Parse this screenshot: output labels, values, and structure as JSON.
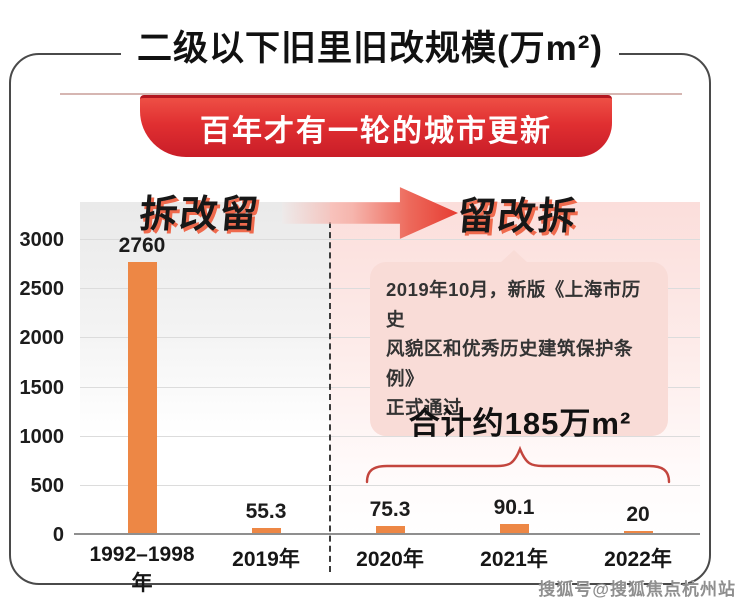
{
  "page": {
    "title": "二级以下旧里旧改规模(万m²)",
    "banner": "百年才有一轮的城市更新",
    "phase_left": "拆改留",
    "phase_right": "留改拆",
    "callout_text": "2019年10月，新版《上海市历史\n风貌区和优秀历史建筑保护条例》\n正式通过",
    "total_label": "合计约185万m²",
    "watermark": "搜狐号@搜狐焦点杭州站"
  },
  "colors": {
    "bar": "#ED8745",
    "banner_red": "#D6242B",
    "accent_red": "#E8453C",
    "callout_bg": "#F9DCD7",
    "brace": "#C3453E",
    "band_left_gray": "#EAEAEA",
    "band_right_pink": "#FBDEDB"
  },
  "chart_data": {
    "type": "bar",
    "title": "二级以下旧里旧改规模(万m²)",
    "categories": [
      "1992–1998年",
      "2019年",
      "2020年",
      "2021年",
      "2022年"
    ],
    "values": [
      2760,
      55.3,
      75.3,
      90.1,
      20
    ],
    "value_labels": [
      "2760",
      "55.3",
      "75.3",
      "90.1",
      "20"
    ],
    "xlabel": "",
    "ylabel": "",
    "ylim": [
      0,
      3000
    ],
    "yticks": [
      0,
      500,
      1000,
      1500,
      2000,
      2500,
      3000
    ],
    "grid": true,
    "legend": false,
    "annotations": {
      "left_group_label": "拆改留",
      "right_group_label": "留改拆",
      "divider_between": [
        "2019年",
        "2020年"
      ],
      "right_group_total": "合计约185万m²",
      "callout": "2019年10月，新版《上海市历史风貌区和优秀历史建筑保护条例》正式通过"
    }
  }
}
